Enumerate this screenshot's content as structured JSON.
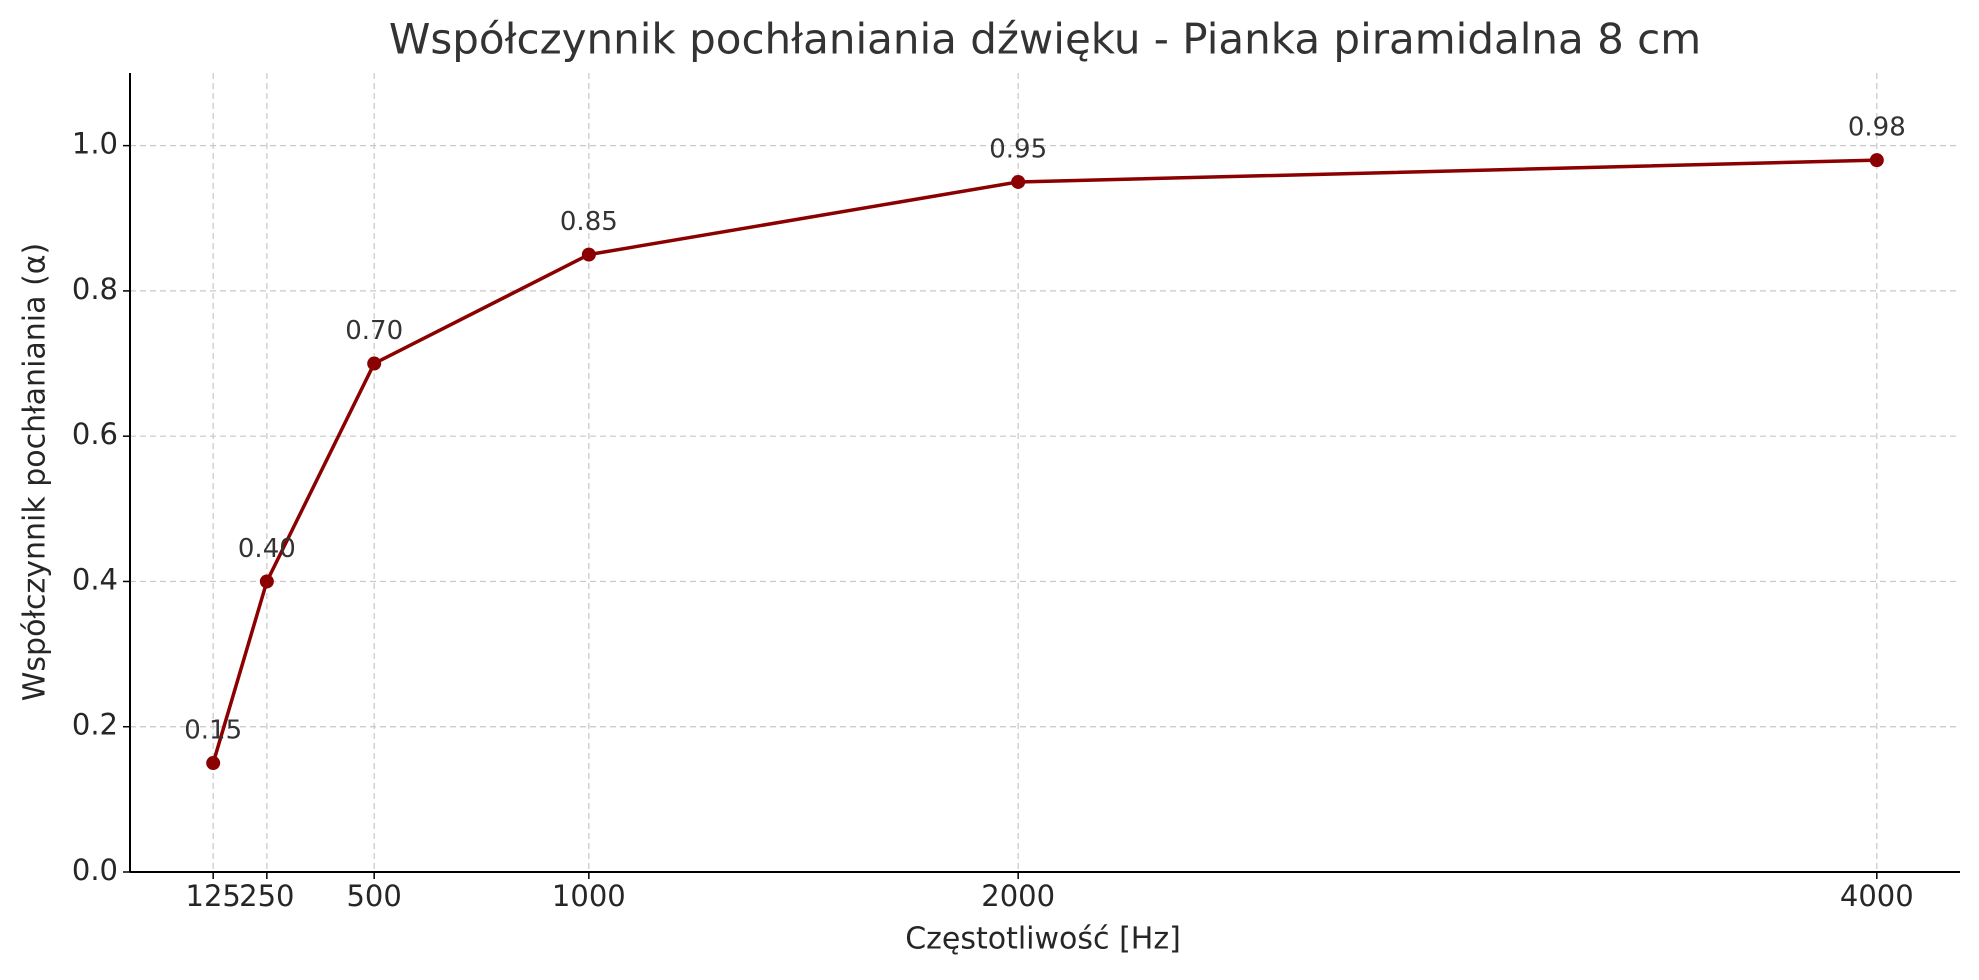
{
  "chart_data": {
    "type": "line",
    "title": "Współczynnik pochłaniania dźwięku - Pianka piramidalna 8 cm",
    "x_label": "Częstotliwość [Hz]",
    "y_label": "Współczynnik pochłaniania (α)",
    "x": [
      125,
      250,
      500,
      1000,
      2000,
      4000
    ],
    "series": [
      {
        "color": "#8b0000",
        "values": [
          0.15,
          0.4,
          0.7,
          0.85,
          0.95,
          0.98
        ],
        "value_labels": [
          "0.15",
          "0.40",
          "0.70",
          "0.85",
          "0.95",
          "0.98"
        ]
      }
    ],
    "xlim": [
      -68.75,
      4193.75
    ],
    "xticks": [
      125,
      250,
      500,
      1000,
      2000,
      4000
    ],
    "ylim": [
      0,
      1.1
    ],
    "yticks": [
      {
        "value": 0,
        "label": "0.0"
      },
      0.2,
      0.4,
      0.6,
      0.8,
      {
        "value": 1,
        "label": "1.0"
      }
    ],
    "grid": true
  }
}
